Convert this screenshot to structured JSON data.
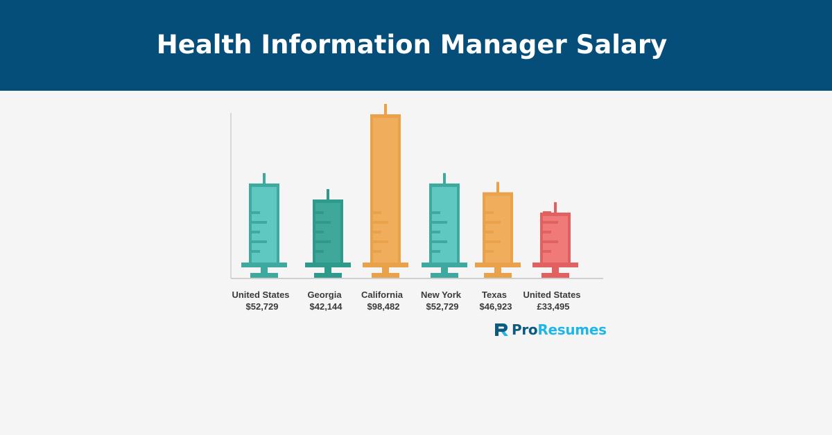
{
  "header": {
    "title": "Health Information Manager Salary"
  },
  "chart_data": {
    "type": "bar",
    "style": "syringe",
    "categories": [
      "United States",
      "Georgia",
      "California",
      "New York",
      "Texas",
      "United States"
    ],
    "value_labels": [
      "$52,729",
      "$42,144",
      "$98,482",
      "$52,729",
      "$46,923",
      "£33,495"
    ],
    "values": [
      52729,
      42144,
      98482,
      52729,
      46923,
      33495
    ],
    "colors": [
      "#3ea99f",
      "#2e9a8b",
      "#e9a24a",
      "#3ea99f",
      "#e9a24a",
      "#e0615f"
    ],
    "fill_colors": [
      "#5fc8c0",
      "#3fa89a",
      "#f0ae5c",
      "#5fc8c0",
      "#f0ae5c",
      "#f07a78"
    ],
    "title": "",
    "xlabel": "",
    "ylabel": "",
    "grid": false,
    "legend": "none"
  },
  "brand": {
    "name_part1": "Pro",
    "name_part2": "Resumes",
    "logo_icon": "proresumes-logo-icon"
  }
}
